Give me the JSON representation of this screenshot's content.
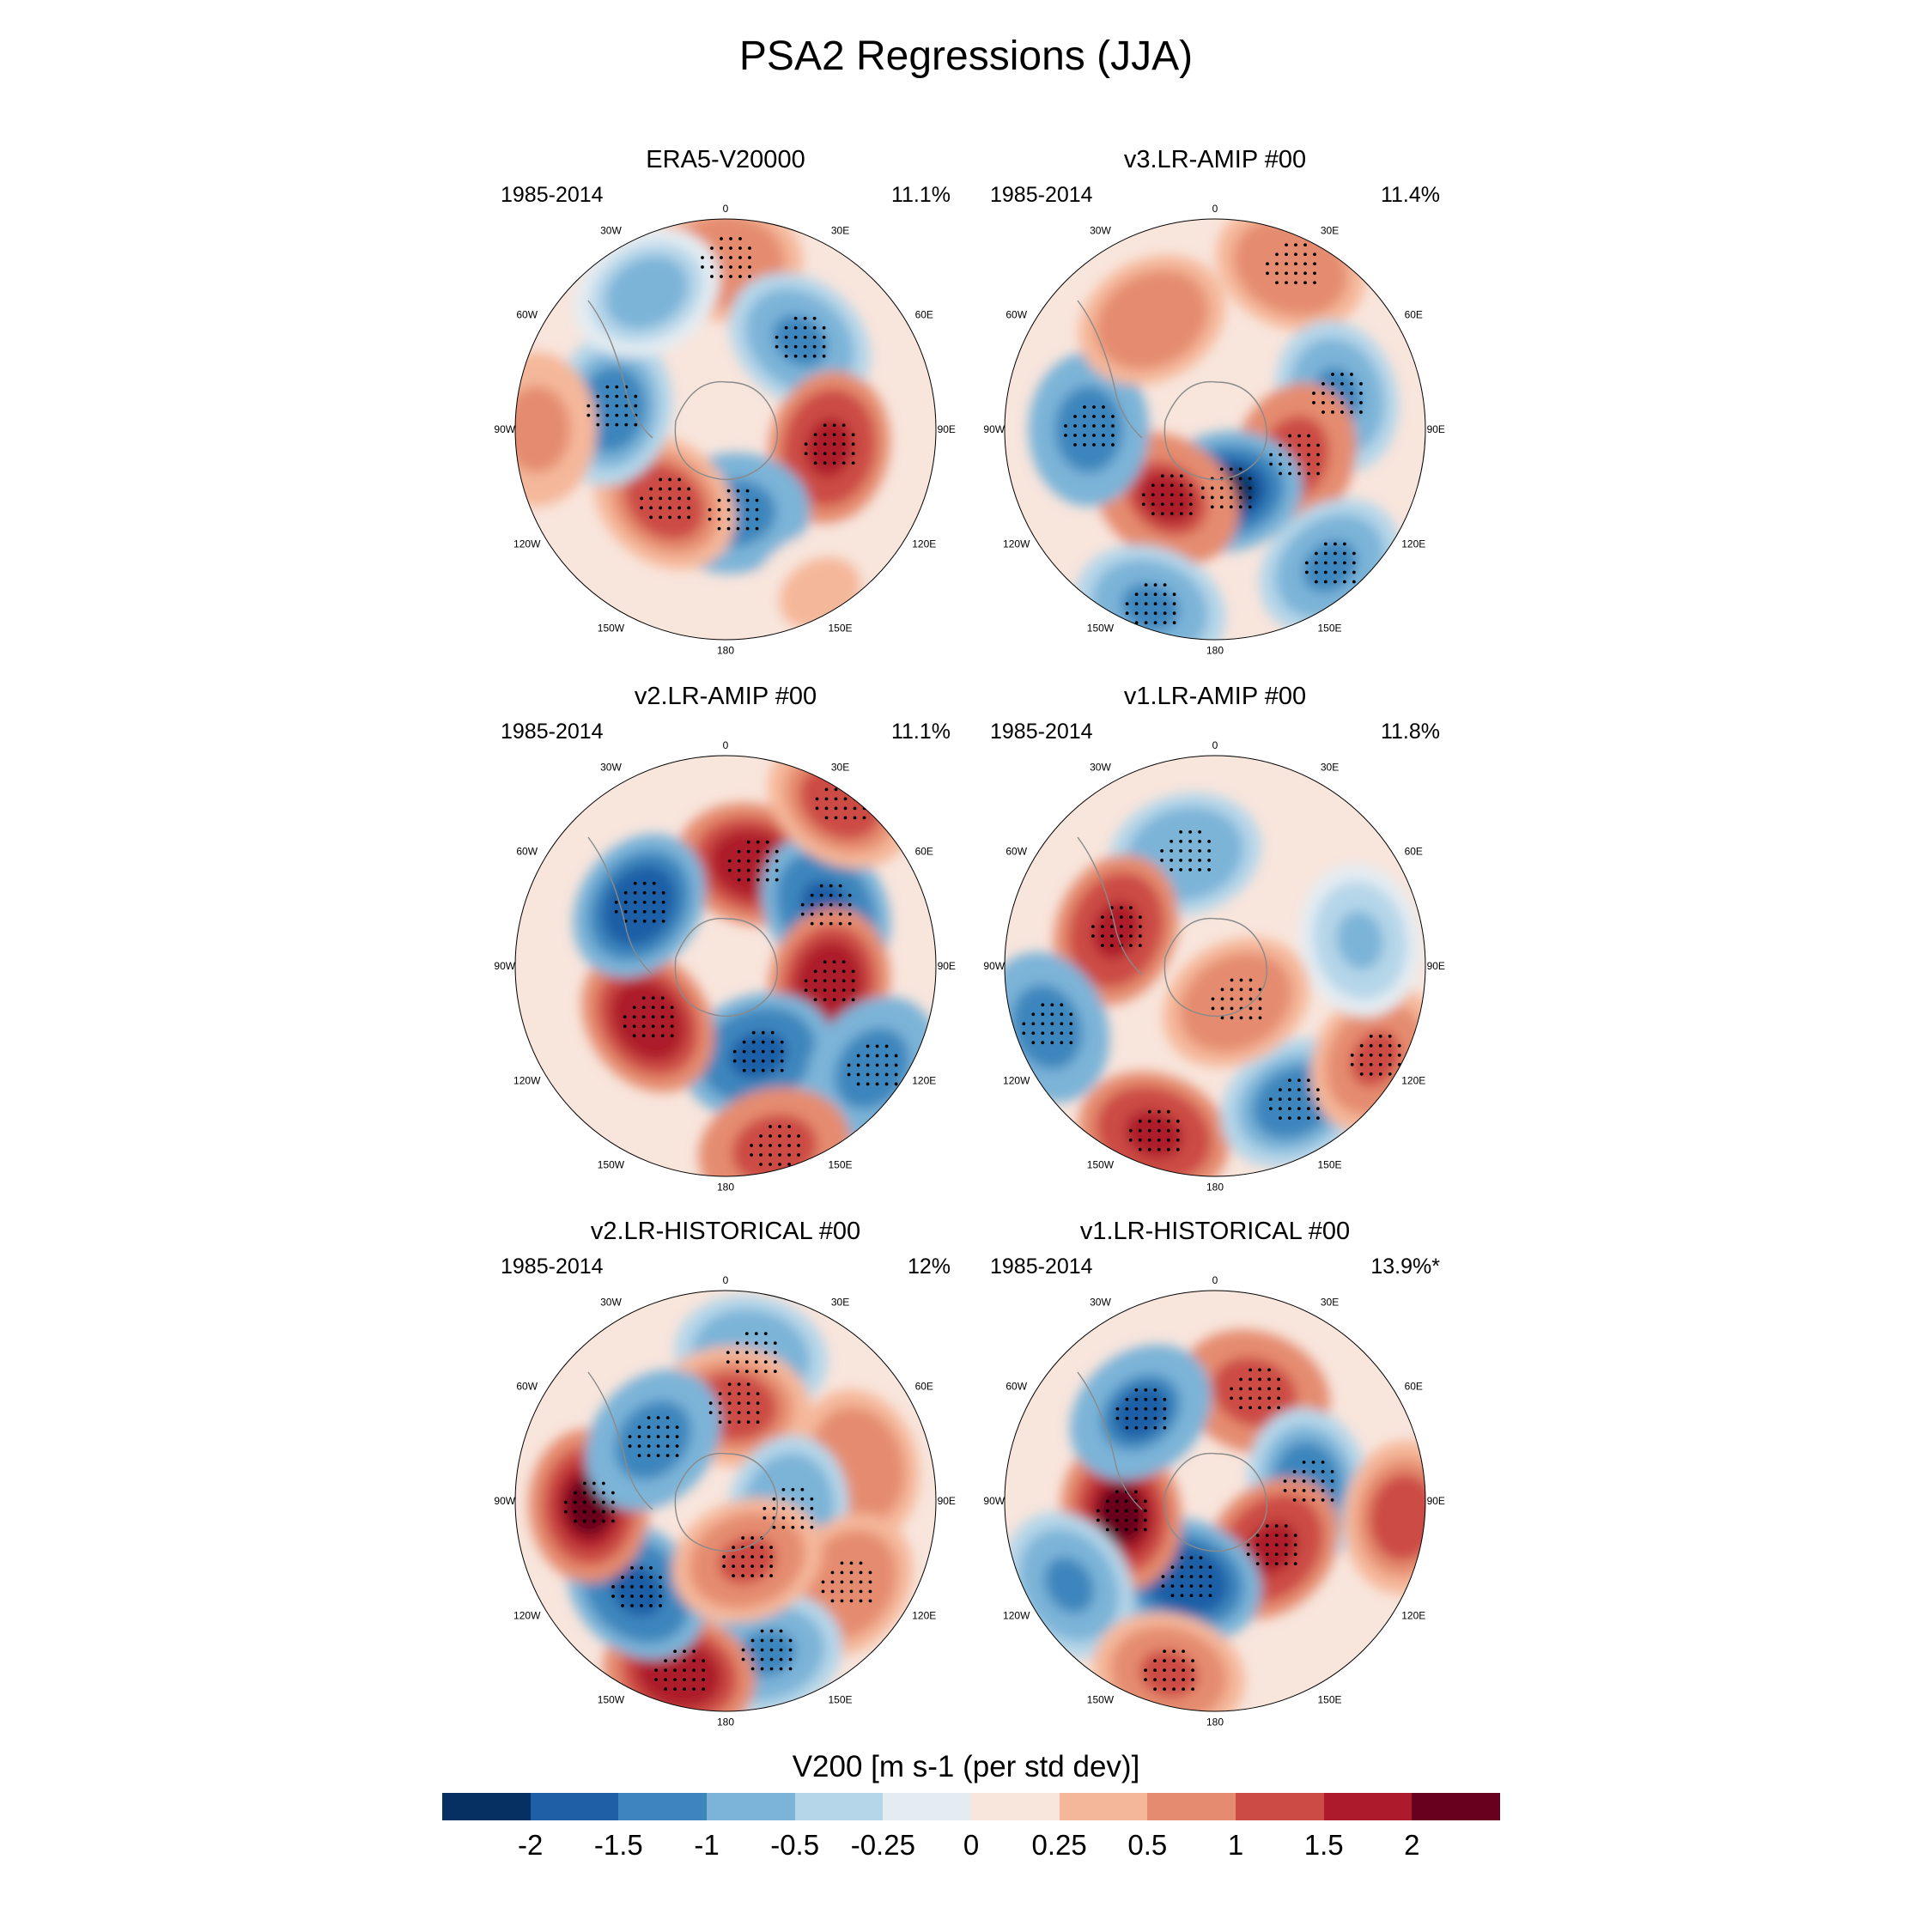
{
  "title": "PSA2 Regressions (JJA)",
  "lon_labels": [
    "0",
    "30E",
    "60E",
    "90E",
    "120E",
    "150E",
    "180",
    "150W",
    "120W",
    "90W",
    "60W",
    "30W"
  ],
  "panels": [
    {
      "title": "ERA5-V20000",
      "period": "1985-2014",
      "percent": "11.1%",
      "blobs": [
        {
          "lon": 0,
          "r": 0.8,
          "level": 0.8,
          "stip": true
        },
        {
          "lon": 40,
          "r": 0.55,
          "level": -1.0,
          "stip": true
        },
        {
          "lon": 100,
          "r": 0.5,
          "level": 1.6,
          "stip": true
        },
        {
          "lon": 175,
          "r": 0.4,
          "level": -1.4,
          "stip": true
        },
        {
          "lon": 220,
          "r": 0.45,
          "level": 1.2,
          "stip": true
        },
        {
          "lon": 280,
          "r": 0.55,
          "level": -1.2,
          "stip": true
        },
        {
          "lon": 270,
          "r": 0.9,
          "level": 0.7,
          "stip": false
        },
        {
          "lon": 150,
          "r": 0.9,
          "level": 0.3,
          "stip": false
        },
        {
          "lon": 330,
          "r": 0.75,
          "level": -0.6,
          "stip": false
        }
      ]
    },
    {
      "title": "v3.LR-AMIP  #00",
      "period": "1985-2014",
      "percent": "11.4%",
      "blobs": [
        {
          "lon": 25,
          "r": 0.85,
          "level": 0.9,
          "stip": true
        },
        {
          "lon": 75,
          "r": 0.6,
          "level": -1.0,
          "stip": true
        },
        {
          "lon": 110,
          "r": 0.4,
          "level": 1.4,
          "stip": true
        },
        {
          "lon": 170,
          "r": 0.3,
          "level": -2.0,
          "stip": true
        },
        {
          "lon": 215,
          "r": 0.4,
          "level": 1.5,
          "stip": true
        },
        {
          "lon": 270,
          "r": 0.6,
          "level": -1.3,
          "stip": true
        },
        {
          "lon": 330,
          "r": 0.6,
          "level": 0.8,
          "stip": false
        },
        {
          "lon": 140,
          "r": 0.85,
          "level": -1.0,
          "stip": true
        },
        {
          "lon": 200,
          "r": 0.9,
          "level": -1.0,
          "stip": true
        }
      ]
    },
    {
      "title": "v2.LR-AMIP  #00",
      "period": "1985-2014",
      "percent": "11.1%",
      "blobs": [
        {
          "lon": 15,
          "r": 0.5,
          "level": 1.8,
          "stip": true
        },
        {
          "lon": 60,
          "r": 0.55,
          "level": -1.6,
          "stip": true
        },
        {
          "lon": 100,
          "r": 0.5,
          "level": 1.8,
          "stip": true
        },
        {
          "lon": 160,
          "r": 0.45,
          "level": -1.6,
          "stip": true
        },
        {
          "lon": 235,
          "r": 0.45,
          "level": 1.9,
          "stip": true
        },
        {
          "lon": 305,
          "r": 0.5,
          "level": -1.9,
          "stip": true
        },
        {
          "lon": 125,
          "r": 0.85,
          "level": -1.3,
          "stip": true
        },
        {
          "lon": 165,
          "r": 0.9,
          "level": 1.4,
          "stip": true
        },
        {
          "lon": 35,
          "r": 0.95,
          "level": 1.2,
          "stip": true
        }
      ]
    },
    {
      "title": "v1.LR-AMIP  #00",
      "period": "1985-2014",
      "percent": "11.8%",
      "blobs": [
        {
          "lon": 345,
          "r": 0.55,
          "level": -0.8,
          "stip": true
        },
        {
          "lon": 290,
          "r": 0.5,
          "level": 1.6,
          "stip": true
        },
        {
          "lon": 250,
          "r": 0.85,
          "level": -1.3,
          "stip": true
        },
        {
          "lon": 200,
          "r": 0.85,
          "level": 1.7,
          "stip": true
        },
        {
          "lon": 150,
          "r": 0.75,
          "level": -1.2,
          "stip": true
        },
        {
          "lon": 120,
          "r": 0.88,
          "level": 1.0,
          "stip": true
        },
        {
          "lon": 150,
          "r": 0.2,
          "level": 0.9,
          "stip": true
        },
        {
          "lon": 80,
          "r": 0.7,
          "level": -0.5,
          "stip": false
        }
      ]
    },
    {
      "title": "v2.LR-HISTORICAL  #00",
      "period": "1985-2014",
      "percent": "12%",
      "blobs": [
        {
          "lon": 10,
          "r": 0.7,
          "level": -0.8,
          "stip": true
        },
        {
          "lon": 5,
          "r": 0.45,
          "level": 1.2,
          "stip": true
        },
        {
          "lon": 75,
          "r": 0.65,
          "level": 0.8,
          "stip": false
        },
        {
          "lon": 100,
          "r": 0.3,
          "level": -0.9,
          "stip": true
        },
        {
          "lon": 125,
          "r": 0.7,
          "level": 0.8,
          "stip": true
        },
        {
          "lon": 165,
          "r": 0.75,
          "level": -1.1,
          "stip": true
        },
        {
          "lon": 195,
          "r": 0.85,
          "level": 1.8,
          "stip": true
        },
        {
          "lon": 225,
          "r": 0.6,
          "level": -1.7,
          "stip": true
        },
        {
          "lon": 268,
          "r": 0.65,
          "level": 2.0,
          "stip": true
        },
        {
          "lon": 310,
          "r": 0.45,
          "level": -1.3,
          "stip": true
        },
        {
          "lon": 160,
          "r": 0.3,
          "level": 1.0,
          "stip": true
        }
      ]
    },
    {
      "title": "v1.LR-HISTORICAL  #00",
      "period": "1985-2014",
      "percent": "13.9%*",
      "blobs": [
        {
          "lon": 20,
          "r": 0.55,
          "level": 1.3,
          "stip": true
        },
        {
          "lon": 80,
          "r": 0.45,
          "level": -1.2,
          "stip": true
        },
        {
          "lon": 130,
          "r": 0.35,
          "level": 1.7,
          "stip": true
        },
        {
          "lon": 200,
          "r": 0.4,
          "level": -1.8,
          "stip": true
        },
        {
          "lon": 262,
          "r": 0.45,
          "level": 2.1,
          "stip": true
        },
        {
          "lon": 320,
          "r": 0.55,
          "level": -1.5,
          "stip": true
        },
        {
          "lon": 95,
          "r": 0.9,
          "level": 1.2,
          "stip": false
        },
        {
          "lon": 240,
          "r": 0.8,
          "level": -1.1,
          "stip": false
        },
        {
          "lon": 195,
          "r": 0.85,
          "level": 1.0,
          "stip": true
        }
      ]
    }
  ],
  "colorbar": {
    "title": "V200 [m s-1 (per std dev)]",
    "colors": [
      "#053061",
      "#1f5fa6",
      "#3d86bd",
      "#7bb4d8",
      "#b5d6e9",
      "#e4ecf2",
      "#f8e5dc",
      "#f5b79a",
      "#e58c70",
      "#cc4b45",
      "#ad1a2c",
      "#67001f"
    ],
    "ticks": [
      "-2",
      "-1.5",
      "-1",
      "-0.5",
      "-0.25",
      "0",
      "0.25",
      "0.5",
      "1",
      "1.5",
      "2"
    ],
    "levels": [
      -2,
      -1.5,
      -1,
      -0.5,
      -0.25,
      0,
      0.25,
      0.5,
      1,
      1.5,
      2
    ]
  }
}
